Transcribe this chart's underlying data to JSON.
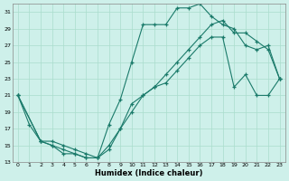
{
  "xlabel": "Humidex (Indice chaleur)",
  "background_color": "#cef0ea",
  "grid_color": "#aaddcc",
  "line_color": "#1a7a6a",
  "xlim": [
    -0.5,
    23.5
  ],
  "ylim": [
    13,
    32
  ],
  "yticks": [
    13,
    15,
    17,
    19,
    21,
    23,
    25,
    27,
    29,
    31
  ],
  "xticks": [
    0,
    1,
    2,
    3,
    4,
    5,
    6,
    7,
    8,
    9,
    10,
    11,
    12,
    13,
    14,
    15,
    16,
    17,
    18,
    19,
    20,
    21,
    22,
    23
  ],
  "line1_x": [
    0,
    1,
    2,
    3,
    4,
    5,
    6,
    7,
    8,
    9,
    10,
    11,
    12,
    13,
    14,
    15,
    16,
    17,
    18,
    19,
    20,
    21,
    22,
    23
  ],
  "line1_y": [
    21,
    17.5,
    15.5,
    15.0,
    14.0,
    14.0,
    13.5,
    13.5,
    17.5,
    20.5,
    25.0,
    29.5,
    29.5,
    29.5,
    31.5,
    31.5,
    32.0,
    30.5,
    29.5,
    29.0,
    27.0,
    26.5,
    27.0,
    23.0
  ],
  "line2_x": [
    0,
    2,
    3,
    4,
    5,
    6,
    7,
    8,
    9,
    10,
    11,
    12,
    13,
    14,
    15,
    16,
    17,
    18,
    19,
    20,
    21,
    22,
    23
  ],
  "line2_y": [
    21,
    15.5,
    15.5,
    15.0,
    14.5,
    14.0,
    13.5,
    14.5,
    17.0,
    20.0,
    21.0,
    22.0,
    22.5,
    24.0,
    25.5,
    27.0,
    28.0,
    28.0,
    22.0,
    23.5,
    21.0,
    21.0,
    23.0
  ],
  "line3_x": [
    0,
    2,
    3,
    4,
    5,
    6,
    7,
    8,
    9,
    10,
    11,
    12,
    13,
    14,
    15,
    16,
    17,
    18,
    19,
    20,
    21,
    22,
    23
  ],
  "line3_y": [
    21,
    15.5,
    15.0,
    14.5,
    14.0,
    13.5,
    13.5,
    15.0,
    17.0,
    19.0,
    21.0,
    22.0,
    23.5,
    25.0,
    26.5,
    28.0,
    29.5,
    30.0,
    28.5,
    28.5,
    27.5,
    26.5,
    23.0
  ]
}
